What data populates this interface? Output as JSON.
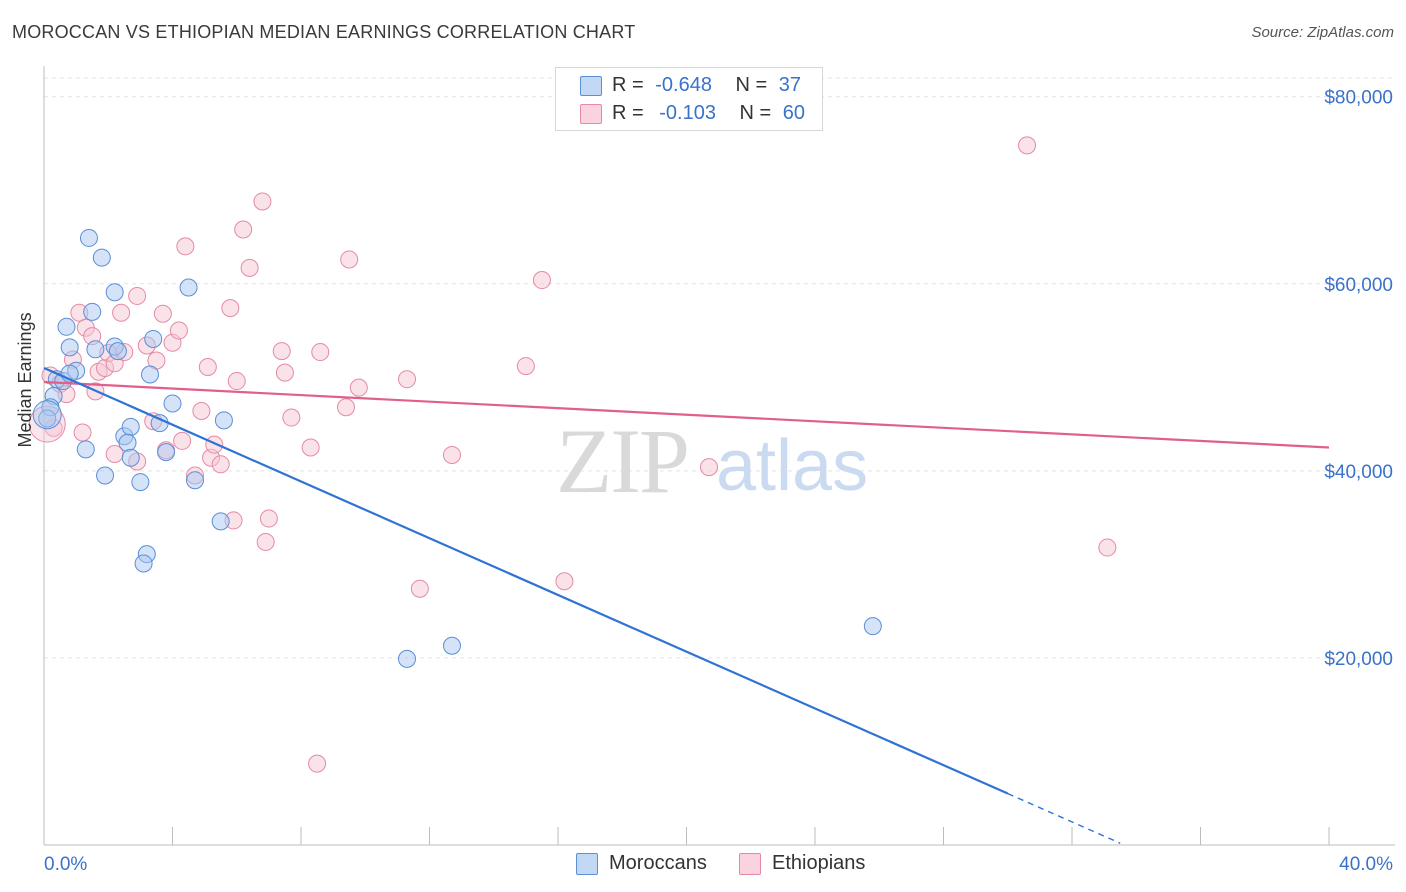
{
  "title": "MOROCCAN VS ETHIOPIAN MEDIAN EARNINGS CORRELATION CHART",
  "source": "Source: ZipAtlas.com",
  "watermark": {
    "zip": "ZIP",
    "atlas": "atlas"
  },
  "legend": {
    "rows": [
      {
        "r_label": "R =",
        "r_value": "-0.648",
        "n_label": "N =",
        "n_value": "37",
        "color": "#a9c8f0",
        "border": "#5b8fd6"
      },
      {
        "r_label": "R =",
        "r_value": "-0.103",
        "n_label": "N =",
        "n_value": "60",
        "color": "#f6c5d4",
        "border": "#e58aa6"
      }
    ]
  },
  "bottom_legend": [
    {
      "label": "Moroccans",
      "color": "#a9c8f0",
      "border": "#5b8fd6"
    },
    {
      "label": "Ethiopians",
      "color": "#f6c5d4",
      "border": "#e58aa6"
    }
  ],
  "chart_data": {
    "type": "scatter",
    "title": "MOROCCAN VS ETHIOPIAN MEDIAN EARNINGS CORRELATION CHART",
    "xlabel": "",
    "ylabel": "Median Earnings",
    "xlim": [
      0,
      40
    ],
    "ylim": [
      0,
      82000
    ],
    "x_tick_labels": [
      "0.0%",
      "40.0%"
    ],
    "y_ticks": [
      20000,
      40000,
      60000,
      80000
    ],
    "y_tick_labels": [
      "$20,000",
      "$40,000",
      "$60,000",
      "$80,000"
    ],
    "grid": true,
    "legend_position": "top-center",
    "series": [
      {
        "name": "Moroccans",
        "color": "#6fa3e6",
        "trend": {
          "x0": 0,
          "y0": 51000,
          "x1": 30,
          "y1": 5500,
          "dash_to_x": 33.5
        },
        "points": [
          [
            0.3,
            48000
          ],
          [
            0.4,
            49800
          ],
          [
            0.2,
            46800
          ],
          [
            0.6,
            49600
          ],
          [
            1.0,
            50700
          ],
          [
            0.8,
            50400
          ],
          [
            0.7,
            55400
          ],
          [
            0.8,
            53200
          ],
          [
            1.5,
            57000
          ],
          [
            1.6,
            53000
          ],
          [
            2.2,
            53300
          ],
          [
            2.3,
            52800
          ],
          [
            1.4,
            64900
          ],
          [
            1.8,
            62800
          ],
          [
            2.2,
            59100
          ],
          [
            3.4,
            54100
          ],
          [
            3.3,
            50300
          ],
          [
            4.5,
            59600
          ],
          [
            2.5,
            43700
          ],
          [
            2.7,
            44700
          ],
          [
            2.6,
            43000
          ],
          [
            2.7,
            41400
          ],
          [
            1.3,
            42300
          ],
          [
            1.9,
            39500
          ],
          [
            3.0,
            38800
          ],
          [
            3.6,
            45100
          ],
          [
            3.8,
            42000
          ],
          [
            4.0,
            47200
          ],
          [
            4.7,
            39000
          ],
          [
            5.6,
            45400
          ],
          [
            5.5,
            34600
          ],
          [
            3.2,
            31100
          ],
          [
            3.1,
            30100
          ],
          [
            11.3,
            19900
          ],
          [
            12.7,
            21300
          ],
          [
            25.8,
            23400
          ],
          [
            0.1,
            45600
          ]
        ]
      },
      {
        "name": "Ethiopians",
        "color": "#f2a7be",
        "trend": {
          "x0": 0,
          "y0": 49500,
          "x1": 40,
          "y1": 42500
        },
        "points": [
          [
            0.2,
            50200
          ],
          [
            0.5,
            49300
          ],
          [
            0.7,
            48200
          ],
          [
            0.9,
            51900
          ],
          [
            1.1,
            56900
          ],
          [
            1.3,
            55300
          ],
          [
            1.5,
            54400
          ],
          [
            1.6,
            48500
          ],
          [
            1.7,
            50600
          ],
          [
            1.9,
            51000
          ],
          [
            2.0,
            52600
          ],
          [
            2.2,
            51500
          ],
          [
            2.4,
            56900
          ],
          [
            2.5,
            52700
          ],
          [
            2.9,
            58700
          ],
          [
            3.2,
            53400
          ],
          [
            3.4,
            45300
          ],
          [
            3.5,
            51800
          ],
          [
            3.7,
            56800
          ],
          [
            3.8,
            42200
          ],
          [
            4.0,
            53700
          ],
          [
            4.2,
            55000
          ],
          [
            4.3,
            43200
          ],
          [
            4.4,
            64000
          ],
          [
            4.7,
            39500
          ],
          [
            4.9,
            46400
          ],
          [
            5.1,
            51100
          ],
          [
            5.2,
            41400
          ],
          [
            5.3,
            42800
          ],
          [
            5.5,
            40700
          ],
          [
            5.8,
            57400
          ],
          [
            6.0,
            49600
          ],
          [
            6.2,
            65800
          ],
          [
            6.4,
            61700
          ],
          [
            6.8,
            68800
          ],
          [
            7.0,
            34900
          ],
          [
            6.9,
            32400
          ],
          [
            7.4,
            52800
          ],
          [
            7.5,
            50500
          ],
          [
            7.7,
            45700
          ],
          [
            8.3,
            42500
          ],
          [
            8.6,
            52700
          ],
          [
            9.4,
            46800
          ],
          [
            9.5,
            62600
          ],
          [
            9.8,
            48900
          ],
          [
            11.7,
            27400
          ],
          [
            11.3,
            49800
          ],
          [
            12.7,
            41700
          ],
          [
            15.0,
            51200
          ],
          [
            15.5,
            60400
          ],
          [
            16.2,
            28200
          ],
          [
            20.7,
            40400
          ],
          [
            30.6,
            74800
          ],
          [
            33.1,
            31800
          ],
          [
            8.5,
            8700
          ],
          [
            2.2,
            41800
          ],
          [
            1.2,
            44100
          ],
          [
            0.3,
            44600
          ],
          [
            5.9,
            34700
          ],
          [
            2.9,
            41000
          ]
        ]
      }
    ]
  }
}
